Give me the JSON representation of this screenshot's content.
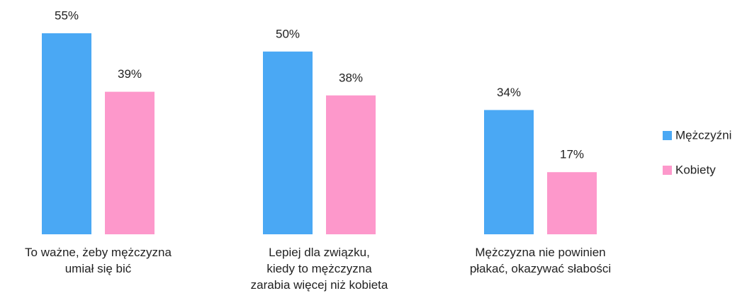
{
  "chart_data": {
    "type": "bar",
    "categories": [
      "To ważne, żeby mężczyzna\numiał się bić",
      "Lepiej dla związku,\nkiedy to mężczyzna\nzarabia więcej niż kobieta",
      "Mężczyzna nie powinien\npłakać, okazywać słabości"
    ],
    "series": [
      {
        "name": "Mężczyźni",
        "color": "#4aa8f4",
        "values": [
          55,
          50,
          34
        ],
        "value_labels": [
          "55%",
          "50%",
          "34%"
        ]
      },
      {
        "name": "Kobiety",
        "color": "#fd98cb",
        "values": [
          39,
          38,
          17
        ],
        "value_labels": [
          "39%",
          "38%",
          "17%"
        ]
      }
    ],
    "legend": "right"
  }
}
